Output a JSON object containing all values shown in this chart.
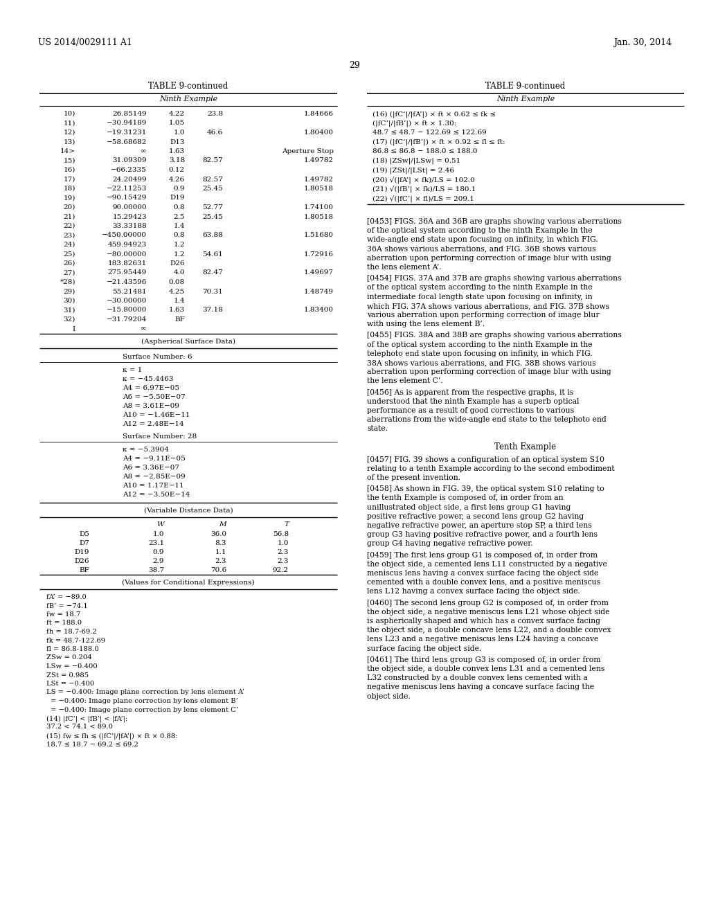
{
  "page_number": "29",
  "patent_number": "US 2014/0029111 A1",
  "date": "Jan. 30, 2014",
  "left_table_title": "TABLE 9-continued",
  "left_table_subtitle": "Ninth Example",
  "left_table_rows": [
    [
      "10)",
      "26.85149",
      "4.22",
      "23.8",
      "1.84666"
    ],
    [
      "11)",
      "−30.94189",
      "1.05",
      "",
      ""
    ],
    [
      "12)",
      "−19.31231",
      "1.0",
      "46.6",
      "1.80400"
    ],
    [
      "13)",
      "−58.68682",
      "D13",
      "",
      ""
    ],
    [
      "14>",
      "∞",
      "1.63",
      "",
      "Aperture Stop"
    ],
    [
      "15)",
      "31.09309",
      "3.18",
      "82.57",
      "1.49782"
    ],
    [
      "16)",
      "−66.2335",
      "0.12",
      "",
      ""
    ],
    [
      "17)",
      "24.20499",
      "4.26",
      "82.57",
      "1.49782"
    ],
    [
      "18)",
      "−22.11253",
      "0.9",
      "25.45",
      "1.80518"
    ],
    [
      "19)",
      "−90.15429",
      "D19",
      "",
      ""
    ],
    [
      "20)",
      "90.00000",
      "0.8",
      "52.77",
      "1.74100"
    ],
    [
      "21)",
      "15.29423",
      "2.5",
      "25.45",
      "1.80518"
    ],
    [
      "22)",
      "33.33188",
      "1.4",
      "",
      ""
    ],
    [
      "23)",
      "−450.00000",
      "0.8",
      "63.88",
      "1.51680"
    ],
    [
      "24)",
      "459.94923",
      "1.2",
      "",
      ""
    ],
    [
      "25)",
      "−80.00000",
      "1.2",
      "54.61",
      "1.72916"
    ],
    [
      "26)",
      "183.82631",
      "D26",
      "",
      ""
    ],
    [
      "27)",
      "275.95449",
      "4.0",
      "82.47",
      "1.49697"
    ],
    [
      "*28)",
      "−21.43596",
      "0.08",
      "",
      ""
    ],
    [
      "29)",
      "55.21481",
      "4.25",
      "70.31",
      "1.48749"
    ],
    [
      "30)",
      "−30.00000",
      "1.4",
      "",
      ""
    ],
    [
      "31)",
      "−15.80000",
      "1.63",
      "37.18",
      "1.83400"
    ],
    [
      "32)",
      "−31.79204",
      "BF",
      "",
      ""
    ],
    [
      "I",
      "∞",
      "",
      "",
      ""
    ]
  ],
  "aspherical_title": "(Aspherical Surface Data)",
  "aspherical_blocks": [
    {
      "header": "Surface Number: 6",
      "lines": [
        "κ = 1",
        "κ = −45.4463",
        "A4 = 6.97E−05",
        "A6 = −5.50E−07",
        "A8 = 3.61E−09",
        "A10 = −1.46E−11",
        "A12 = 2.48E−14"
      ]
    },
    {
      "header": "Surface Number: 28",
      "lines": [
        "κ = −5.3904",
        "A4 = −9.11E−05",
        "A6 = 3.36E−07",
        "A8 = −2.85E−09",
        "A10 = 1.17E−11",
        "A12 = −3.50E−14"
      ]
    }
  ],
  "variable_title": "(Variable Distance Data)",
  "variable_headers": [
    "",
    "W",
    "M",
    "T"
  ],
  "variable_rows": [
    [
      "D5",
      "1.0",
      "36.0",
      "56.8"
    ],
    [
      "D7",
      "23.1",
      "8.3",
      "1.0"
    ],
    [
      "D19",
      "0.9",
      "1.1",
      "2.3"
    ],
    [
      "D26",
      "2.9",
      "2.3",
      "2.3"
    ],
    [
      "BF",
      "38.7",
      "70.6",
      "92.2"
    ]
  ],
  "values_title": "(Values for Conditional Expressions)",
  "values_lines": [
    "fA’ = −89.0",
    "fB’ = −74.1",
    "fw = 18.7",
    "ft = 188.0",
    "fh = 18.7-69.2",
    "fk = 48.7-122.69",
    "fl = 86.8-188.0",
    "ZSw = 0.204",
    "LSw = −0.400",
    "ZSt = 0.985",
    "LSt = −0.400",
    "LS = −0.400: Image plane correction by lens element A’",
    "= −0.400: Image plane correction by lens element B’",
    "= −0.400: Image plane correction by lens element C’",
    "(14) |fC’| < |fB’| < |fA’|:",
    "37.2 < 74.1 < 89.0",
    "(15) fw ≤ fh ≤ (|fC’|/|fA’|) × ft × 0.88:",
    "18.7 ≤ 18.7 − 69.2 ≤ 69.2"
  ],
  "right_table_title": "TABLE 9-continued",
  "right_table_subtitle": "Ninth Example",
  "right_table_lines": [
    "(16) (|fC’|/|fA’|) × ft × 0.62 ≤ fk ≤",
    "(|fC’|/|fB’|) × ft × 1.30:",
    "48.7 ≤ 48.7 − 122.69 ≤ 122.69",
    "(17) (|fC’|/|fB’|) × ft × 0.92 ≤ fl ≤ ft:",
    "86.8 ≤ 86.8 − 188.0 ≤ 188.0",
    "(18) |ZSw|/|LSw| = 0.51",
    "(19) |ZSt|/|LSt| = 2.46",
    "(20) √(|fA’| × fk)/LS = 102.0",
    "(21) √(|fB’| × fk)/LS = 180.1",
    "(22) √(|fC’| × fl)/LS = 209.1"
  ],
  "paragraphs": [
    {
      "tag": "[0453]",
      "bold_parts": [
        "36A",
        "36B",
        "36A",
        "36B"
      ],
      "text": "FIGS. 36A and 36B are graphs showing various aberrations of the optical system according to the ninth Example in the wide-angle end state upon focusing on infinity, in which FIG. 36A shows various aberrations, and FIG. 36B shows various aberration upon performing correction of image blur with using the lens element A’."
    },
    {
      "tag": "[0454]",
      "bold_parts": [
        "37A",
        "37B",
        "37A",
        "37B"
      ],
      "text": "FIGS. 37A and 37B are graphs showing various aberrations of the optical system according to the ninth Example in the intermediate focal length state upon focusing on infinity, in which FIG. 37A shows various aberrations, and FIG. 37B shows various aberration upon performing correction of image blur with using the lens element B’."
    },
    {
      "tag": "[0455]",
      "bold_parts": [
        "38A",
        "38B",
        "38A",
        "38B"
      ],
      "text": "FIGS. 38A and 38B are graphs showing various aberrations of the optical system according to the ninth Example in the telephoto end state upon focusing on infinity, in which FIG. 38A shows various aberrations, and FIG. 38B shows various aberration upon performing correction of image blur with using the lens element C’."
    },
    {
      "tag": "[0456]",
      "bold_parts": [],
      "text": "As is apparent from the respective graphs, it is understood that the ninth Example has a superb optical performance as a result of good corrections to various aberrations from the wide-angle end state to the telephoto end state."
    },
    {
      "tag": "Tenth Example",
      "text": "",
      "is_section": true
    },
    {
      "tag": "[0457]",
      "bold_parts": [
        "39"
      ],
      "text": "FIG. 39 shows a configuration of an optical system S10 relating to a tenth Example according to the second embodiment of the present invention."
    },
    {
      "tag": "[0458]",
      "bold_parts": [
        "39"
      ],
      "text": "As shown in FIG. 39, the optical system S10 relating to the tenth Example is composed of, in order from an unillustrated object side, a first lens group G1 having positive refractive power, a second lens group G2 having negative refractive power, an aperture stop SP, a third lens group G3 having positive refractive power, and a fourth lens group G4 having negative refractive power."
    },
    {
      "tag": "[0459]",
      "bold_parts": [],
      "text": "The first lens group G1 is composed of, in order from the object side, a cemented lens L11 constructed by a negative meniscus lens having a convex surface facing the object side cemented with a double convex lens, and a positive meniscus lens L12 having a convex surface facing the object side."
    },
    {
      "tag": "[0460]",
      "bold_parts": [],
      "text": "The second lens group G2 is composed of, in order from the object side, a negative meniscus lens L21 whose object side is aspherically shaped and which has a convex surface facing the object side, a double concave lens L22, and a double convex lens L23 and a negative meniscus lens L24 having a concave surface facing the object side."
    },
    {
      "tag": "[0461]",
      "bold_parts": [],
      "text": "The third lens group G3 is composed of, in order from the object side, a double convex lens L31 and a cemented lens L32 constructed by a double convex lens cemented with a negative meniscus lens having a concave surface facing the object side."
    }
  ]
}
